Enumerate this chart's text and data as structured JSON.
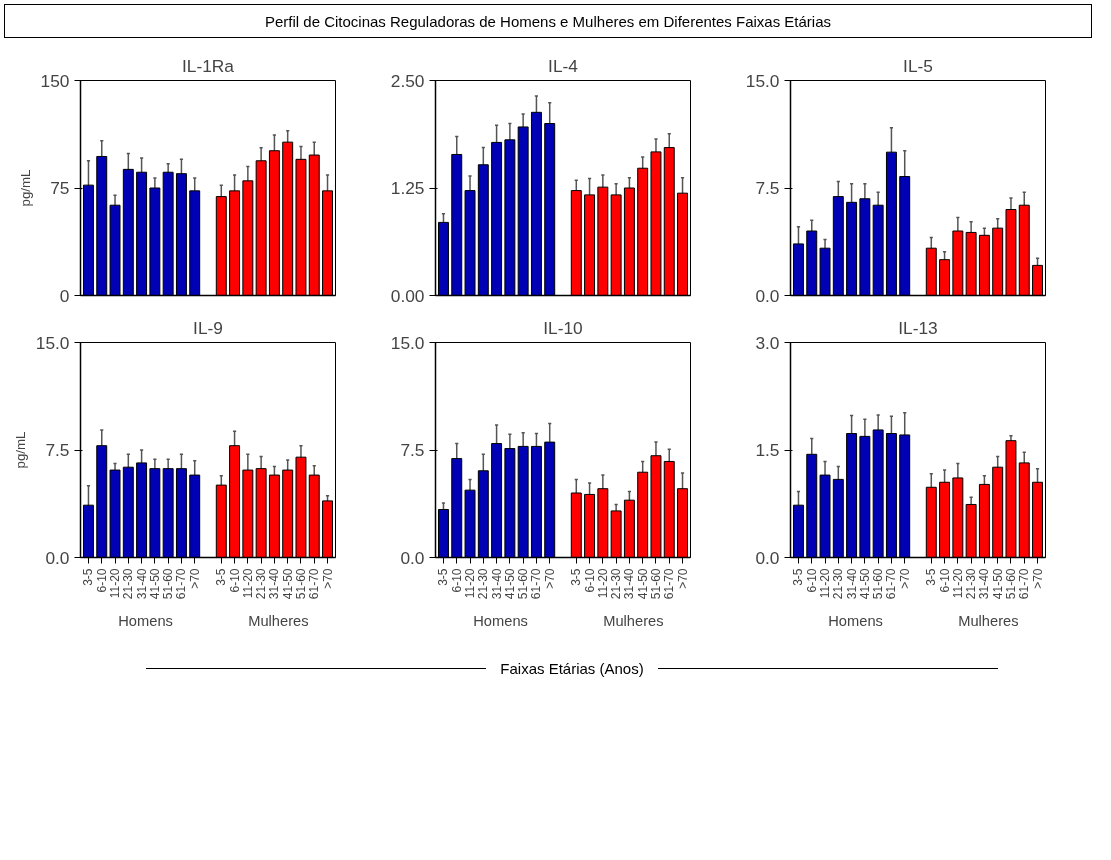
{
  "chart_data": [
    {
      "type": "bar",
      "title": "IL-1Ra",
      "ylabel": "pg/mL",
      "annotations": [
        "Perfil de Citocinas Reguladoras de Homens e Mulheres em Diferentes Faixas Etárias"
      ],
      "tick_labels": "y",
      "categories": [
        null,
        null,
        null,
        null,
        null,
        null,
        null,
        null,
        null,
        null,
        null,
        null,
        null,
        null,
        null,
        null,
        null,
        null,
        null
      ],
      "ylim": [
        0,
        150
      ],
      "yticks": [
        0,
        75,
        150
      ],
      "series": [
        {
          "color": "#0000b4",
          "values": [
            77,
            97,
            63,
            88,
            86,
            75,
            86,
            85,
            73,
            null,
            null,
            null,
            null,
            null,
            null,
            null,
            null,
            null,
            null
          ],
          "errors": [
            17,
            11,
            7,
            11,
            10,
            7,
            6,
            10,
            9,
            null,
            null,
            null,
            null,
            null,
            null,
            null,
            null,
            null,
            null
          ]
        },
        {
          "color": "#ff0000",
          "values": [
            null,
            null,
            null,
            null,
            null,
            null,
            null,
            null,
            null,
            null,
            69,
            73,
            80,
            94,
            101,
            107,
            95,
            98,
            73
          ],
          "errors": [
            null,
            null,
            null,
            null,
            null,
            null,
            null,
            null,
            null,
            null,
            8,
            11,
            10,
            9,
            11,
            8,
            9,
            9,
            11
          ]
        }
      ]
    },
    {
      "type": "bar",
      "title": "IL-4",
      "tick_labels": "y",
      "categories": [
        null,
        null,
        null,
        null,
        null,
        null,
        null,
        null,
        null,
        null,
        null,
        null,
        null,
        null,
        null,
        null,
        null,
        null,
        null
      ],
      "ylim": [
        0,
        2.5
      ],
      "yticks": [
        {
          "value": 0,
          "label": "0.00"
        },
        {
          "value": 1.25,
          "label": "1.25"
        },
        {
          "value": 2.5,
          "label": "2.50"
        }
      ],
      "series": [
        {
          "color": "#0000b4",
          "values": [
            0.85,
            1.64,
            1.22,
            1.52,
            1.78,
            1.81,
            1.96,
            2.13,
            2.0,
            null,
            null,
            null,
            null,
            null,
            null,
            null,
            null,
            null,
            null
          ],
          "errors": [
            0.1,
            0.21,
            0.17,
            0.2,
            0.2,
            0.19,
            0.15,
            0.19,
            0.24,
            null,
            null,
            null,
            null,
            null,
            null,
            null,
            null,
            null,
            null
          ]
        },
        {
          "color": "#ff0000",
          "values": [
            null,
            null,
            null,
            null,
            null,
            null,
            null,
            null,
            null,
            null,
            1.22,
            1.17,
            1.26,
            1.17,
            1.25,
            1.48,
            1.67,
            1.72,
            1.19
          ],
          "errors": [
            null,
            null,
            null,
            null,
            null,
            null,
            null,
            null,
            null,
            null,
            0.12,
            0.19,
            0.14,
            0.13,
            0.12,
            0.13,
            0.15,
            0.16,
            0.18
          ]
        }
      ]
    },
    {
      "type": "bar",
      "title": "IL-5",
      "tick_labels": "y",
      "categories": [
        null,
        null,
        null,
        null,
        null,
        null,
        null,
        null,
        null,
        null,
        null,
        null,
        null,
        null,
        null,
        null,
        null,
        null,
        null
      ],
      "ylim": [
        0,
        15
      ],
      "yticks": [
        {
          "value": 0,
          "label": "0.0"
        },
        {
          "value": 7.5,
          "label": "7.5"
        },
        {
          "value": 15,
          "label": "15.0"
        }
      ],
      "series": [
        {
          "color": "#0000b4",
          "values": [
            3.6,
            4.5,
            3.3,
            6.9,
            6.5,
            6.75,
            6.3,
            10.0,
            8.3,
            null,
            null,
            null,
            null,
            null,
            null,
            null,
            null,
            null,
            null
          ],
          "errors": [
            1.2,
            0.75,
            0.6,
            1.05,
            1.3,
            1.05,
            0.9,
            1.7,
            1.8,
            null,
            null,
            null,
            null,
            null,
            null,
            null,
            null,
            null,
            null
          ]
        },
        {
          "color": "#ff0000",
          "values": [
            null,
            null,
            null,
            null,
            null,
            null,
            null,
            null,
            null,
            null,
            3.3,
            2.5,
            4.5,
            4.4,
            4.2,
            4.7,
            6.0,
            6.3,
            2.1
          ],
          "errors": [
            null,
            null,
            null,
            null,
            null,
            null,
            null,
            null,
            null,
            null,
            0.75,
            0.55,
            0.95,
            0.75,
            0.5,
            0.65,
            0.8,
            0.9,
            0.5
          ]
        }
      ]
    },
    {
      "type": "bar",
      "title": "IL-9",
      "ylabel": "pg/mL",
      "annotations": [
        "Homens",
        "Mulheres"
      ],
      "categories": [
        "3-5",
        "6-10",
        "11-20",
        "21-30",
        "31-40",
        "41-50",
        "51-60",
        "61-70",
        ">70",
        null,
        "3-5",
        "6-10",
        "11-20",
        "21-30",
        "31-40",
        "41-50",
        "51-60",
        "61-70",
        ">70"
      ],
      "ylim": [
        0,
        15
      ],
      "yticks": [
        {
          "value": 0,
          "label": "0.0"
        },
        {
          "value": 7.5,
          "label": "7.5"
        },
        {
          "value": 15,
          "label": "15.0"
        }
      ],
      "series": [
        {
          "color": "#0000b4",
          "values": [
            3.65,
            7.8,
            6.1,
            6.3,
            6.6,
            6.2,
            6.2,
            6.2,
            5.75,
            null,
            null,
            null,
            null,
            null,
            null,
            null,
            null,
            null,
            null
          ],
          "errors": [
            1.35,
            1.1,
            0.45,
            0.9,
            0.9,
            0.65,
            0.65,
            1.0,
            1.0,
            null,
            null,
            null,
            null,
            null,
            null,
            null,
            null,
            null,
            null
          ]
        },
        {
          "color": "#ff0000",
          "values": [
            null,
            null,
            null,
            null,
            null,
            null,
            null,
            null,
            null,
            null,
            5.05,
            7.8,
            6.1,
            6.2,
            5.75,
            6.1,
            7.0,
            5.75,
            3.95
          ],
          "errors": [
            null,
            null,
            null,
            null,
            null,
            null,
            null,
            null,
            null,
            null,
            0.65,
            1.0,
            1.1,
            0.85,
            0.6,
            0.7,
            0.8,
            0.65,
            0.35
          ]
        }
      ]
    },
    {
      "type": "bar",
      "title": "IL-10",
      "xlabel": "Faixas Etárias (Anos)",
      "annotations": [
        "Homens",
        "Mulheres"
      ],
      "categories": [
        "3-5",
        "6-10",
        "11-20",
        "21-30",
        "31-40",
        "41-50",
        "51-60",
        "61-70",
        ">70",
        null,
        "3-5",
        "6-10",
        "11-20",
        "21-30",
        "31-40",
        "41-50",
        "51-60",
        "61-70",
        ">70"
      ],
      "ylim": [
        0,
        15
      ],
      "yticks": [
        {
          "value": 0,
          "label": "0.0"
        },
        {
          "value": 7.5,
          "label": "7.5"
        },
        {
          "value": 15,
          "label": "15.0"
        }
      ],
      "series": [
        {
          "color": "#0000b4",
          "values": [
            3.35,
            6.9,
            4.7,
            6.05,
            7.95,
            7.6,
            7.75,
            7.75,
            8.05,
            null,
            null,
            null,
            null,
            null,
            null,
            null,
            null,
            null,
            null
          ],
          "errors": [
            0.45,
            1.05,
            0.75,
            1.15,
            1.3,
            1.0,
            0.95,
            0.9,
            1.3,
            null,
            null,
            null,
            null,
            null,
            null,
            null,
            null,
            null,
            null
          ]
        },
        {
          "color": "#ff0000",
          "values": [
            null,
            null,
            null,
            null,
            null,
            null,
            null,
            null,
            null,
            null,
            4.5,
            4.4,
            4.8,
            3.25,
            4.0,
            5.95,
            7.1,
            6.7,
            4.8
          ],
          "errors": [
            null,
            null,
            null,
            null,
            null,
            null,
            null,
            null,
            null,
            null,
            0.95,
            0.8,
            0.95,
            0.45,
            0.6,
            0.75,
            0.95,
            0.85,
            1.1
          ]
        }
      ]
    },
    {
      "type": "bar",
      "title": "IL-13",
      "annotations": [
        "Homens",
        "Mulheres"
      ],
      "categories": [
        "3-5",
        "6-10",
        "11-20",
        "21-30",
        "31-40",
        "41-50",
        "51-60",
        "61-70",
        ">70",
        null,
        "3-5",
        "6-10",
        "11-20",
        "21-30",
        "31-40",
        "41-50",
        "51-60",
        "61-70",
        ">70"
      ],
      "ylim": [
        0,
        3.0
      ],
      "yticks": [
        {
          "value": 0,
          "label": "0.0"
        },
        {
          "value": 1.5,
          "label": "1.5"
        },
        {
          "value": 3.0,
          "label": "3.0"
        }
      ],
      "series": [
        {
          "color": "#0000b4",
          "values": [
            0.73,
            1.44,
            1.15,
            1.09,
            1.73,
            1.69,
            1.78,
            1.73,
            1.71,
            null,
            null,
            null,
            null,
            null,
            null,
            null,
            null,
            null,
            null
          ],
          "errors": [
            0.19,
            0.22,
            0.19,
            0.18,
            0.25,
            0.24,
            0.21,
            0.24,
            0.31,
            null,
            null,
            null,
            null,
            null,
            null,
            null,
            null,
            null,
            null
          ]
        },
        {
          "color": "#ff0000",
          "values": [
            null,
            null,
            null,
            null,
            null,
            null,
            null,
            null,
            null,
            null,
            0.98,
            1.05,
            1.11,
            0.74,
            1.02,
            1.26,
            1.63,
            1.32,
            1.05
          ],
          "errors": [
            null,
            null,
            null,
            null,
            null,
            null,
            null,
            null,
            null,
            null,
            0.19,
            0.17,
            0.2,
            0.1,
            0.12,
            0.15,
            0.07,
            0.15,
            0.19
          ]
        }
      ]
    }
  ]
}
